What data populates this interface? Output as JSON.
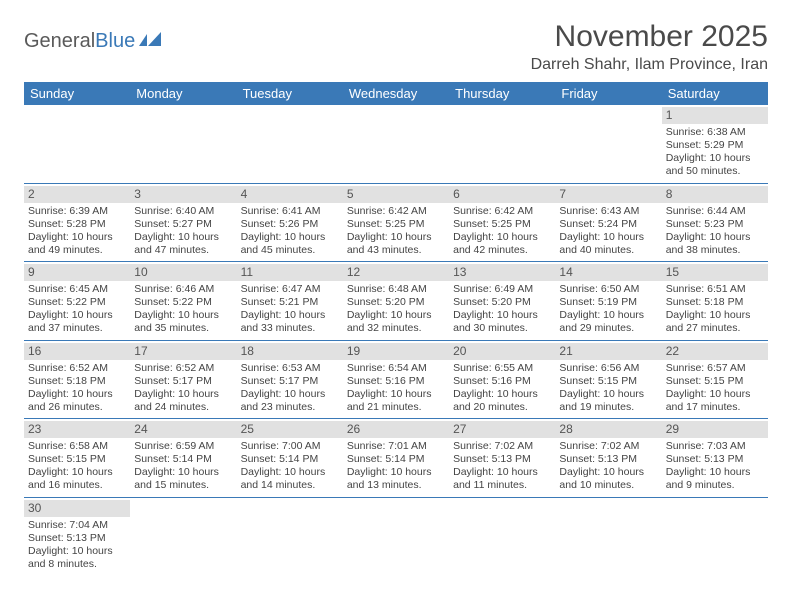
{
  "logo": {
    "text1": "General",
    "text2": "Blue"
  },
  "header": {
    "title": "November 2025",
    "location": "Darreh Shahr, Ilam Province, Iran"
  },
  "colors": {
    "header_bg": "#3a79b7",
    "header_text": "#ffffff",
    "daybar_bg": "#e1e1e1",
    "rule": "#3a79b7"
  },
  "calendar": {
    "weekdays": [
      "Sunday",
      "Monday",
      "Tuesday",
      "Wednesday",
      "Thursday",
      "Friday",
      "Saturday"
    ],
    "first_weekday_index": 6,
    "days": [
      {
        "n": 1,
        "sunrise": "6:38 AM",
        "sunset": "5:29 PM",
        "daylight": "10 hours and 50 minutes."
      },
      {
        "n": 2,
        "sunrise": "6:39 AM",
        "sunset": "5:28 PM",
        "daylight": "10 hours and 49 minutes."
      },
      {
        "n": 3,
        "sunrise": "6:40 AM",
        "sunset": "5:27 PM",
        "daylight": "10 hours and 47 minutes."
      },
      {
        "n": 4,
        "sunrise": "6:41 AM",
        "sunset": "5:26 PM",
        "daylight": "10 hours and 45 minutes."
      },
      {
        "n": 5,
        "sunrise": "6:42 AM",
        "sunset": "5:25 PM",
        "daylight": "10 hours and 43 minutes."
      },
      {
        "n": 6,
        "sunrise": "6:42 AM",
        "sunset": "5:25 PM",
        "daylight": "10 hours and 42 minutes."
      },
      {
        "n": 7,
        "sunrise": "6:43 AM",
        "sunset": "5:24 PM",
        "daylight": "10 hours and 40 minutes."
      },
      {
        "n": 8,
        "sunrise": "6:44 AM",
        "sunset": "5:23 PM",
        "daylight": "10 hours and 38 minutes."
      },
      {
        "n": 9,
        "sunrise": "6:45 AM",
        "sunset": "5:22 PM",
        "daylight": "10 hours and 37 minutes."
      },
      {
        "n": 10,
        "sunrise": "6:46 AM",
        "sunset": "5:22 PM",
        "daylight": "10 hours and 35 minutes."
      },
      {
        "n": 11,
        "sunrise": "6:47 AM",
        "sunset": "5:21 PM",
        "daylight": "10 hours and 33 minutes."
      },
      {
        "n": 12,
        "sunrise": "6:48 AM",
        "sunset": "5:20 PM",
        "daylight": "10 hours and 32 minutes."
      },
      {
        "n": 13,
        "sunrise": "6:49 AM",
        "sunset": "5:20 PM",
        "daylight": "10 hours and 30 minutes."
      },
      {
        "n": 14,
        "sunrise": "6:50 AM",
        "sunset": "5:19 PM",
        "daylight": "10 hours and 29 minutes."
      },
      {
        "n": 15,
        "sunrise": "6:51 AM",
        "sunset": "5:18 PM",
        "daylight": "10 hours and 27 minutes."
      },
      {
        "n": 16,
        "sunrise": "6:52 AM",
        "sunset": "5:18 PM",
        "daylight": "10 hours and 26 minutes."
      },
      {
        "n": 17,
        "sunrise": "6:52 AM",
        "sunset": "5:17 PM",
        "daylight": "10 hours and 24 minutes."
      },
      {
        "n": 18,
        "sunrise": "6:53 AM",
        "sunset": "5:17 PM",
        "daylight": "10 hours and 23 minutes."
      },
      {
        "n": 19,
        "sunrise": "6:54 AM",
        "sunset": "5:16 PM",
        "daylight": "10 hours and 21 minutes."
      },
      {
        "n": 20,
        "sunrise": "6:55 AM",
        "sunset": "5:16 PM",
        "daylight": "10 hours and 20 minutes."
      },
      {
        "n": 21,
        "sunrise": "6:56 AM",
        "sunset": "5:15 PM",
        "daylight": "10 hours and 19 minutes."
      },
      {
        "n": 22,
        "sunrise": "6:57 AM",
        "sunset": "5:15 PM",
        "daylight": "10 hours and 17 minutes."
      },
      {
        "n": 23,
        "sunrise": "6:58 AM",
        "sunset": "5:15 PM",
        "daylight": "10 hours and 16 minutes."
      },
      {
        "n": 24,
        "sunrise": "6:59 AM",
        "sunset": "5:14 PM",
        "daylight": "10 hours and 15 minutes."
      },
      {
        "n": 25,
        "sunrise": "7:00 AM",
        "sunset": "5:14 PM",
        "daylight": "10 hours and 14 minutes."
      },
      {
        "n": 26,
        "sunrise": "7:01 AM",
        "sunset": "5:14 PM",
        "daylight": "10 hours and 13 minutes."
      },
      {
        "n": 27,
        "sunrise": "7:02 AM",
        "sunset": "5:13 PM",
        "daylight": "10 hours and 11 minutes."
      },
      {
        "n": 28,
        "sunrise": "7:02 AM",
        "sunset": "5:13 PM",
        "daylight": "10 hours and 10 minutes."
      },
      {
        "n": 29,
        "sunrise": "7:03 AM",
        "sunset": "5:13 PM",
        "daylight": "10 hours and 9 minutes."
      },
      {
        "n": 30,
        "sunrise": "7:04 AM",
        "sunset": "5:13 PM",
        "daylight": "10 hours and 8 minutes."
      }
    ],
    "labels": {
      "sunrise": "Sunrise:",
      "sunset": "Sunset:",
      "daylight": "Daylight:"
    }
  }
}
